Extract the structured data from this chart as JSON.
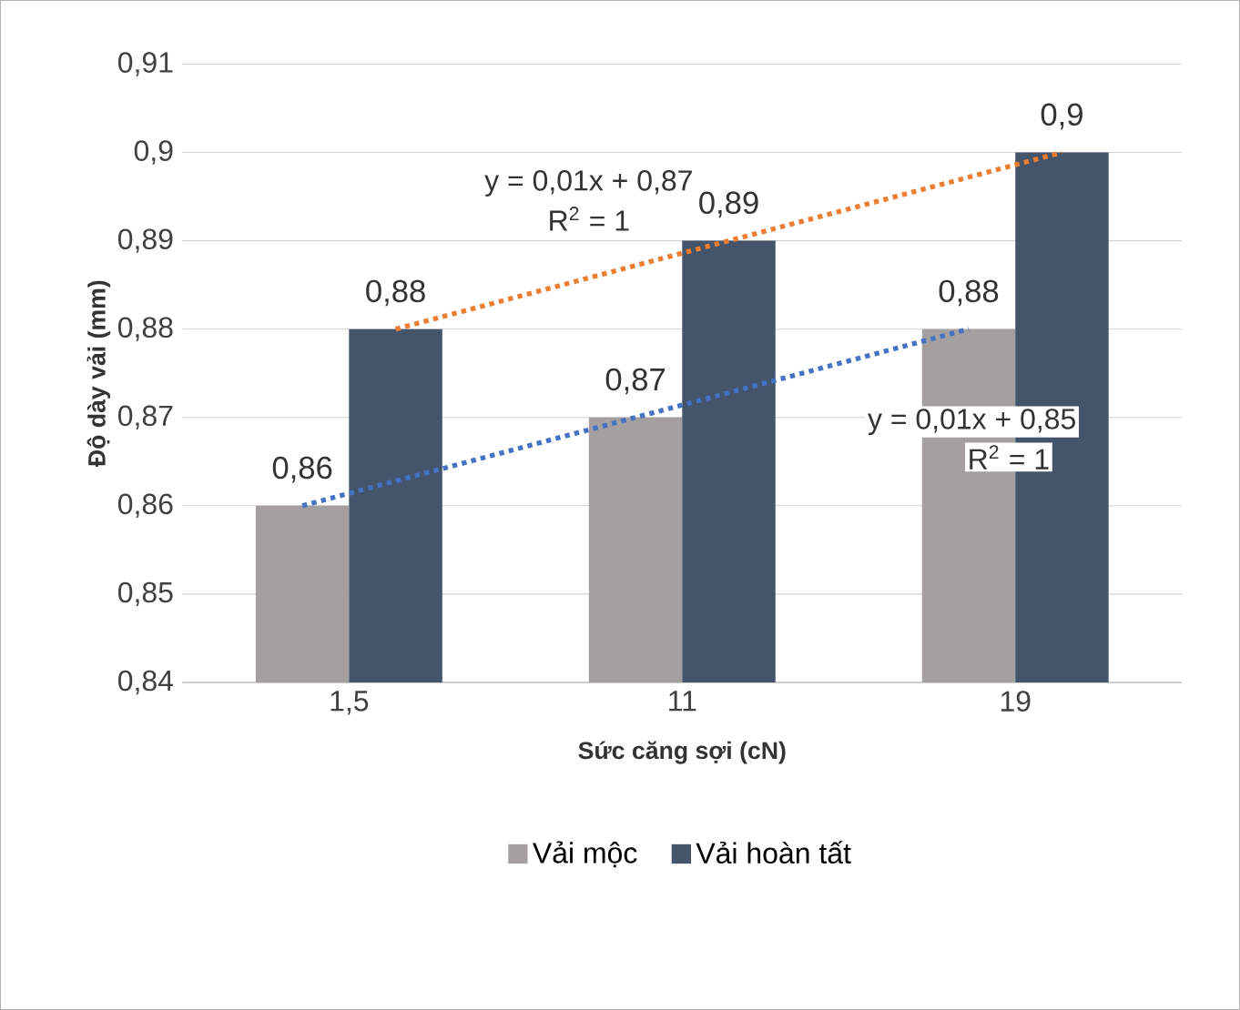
{
  "chart_data": {
    "type": "bar",
    "xlabel": "Sức căng sợi (cN)",
    "ylabel": "Độ dày vải (mm)",
    "categories": [
      "1,5",
      "11",
      "19"
    ],
    "series": [
      {
        "name": "Vải mộc",
        "color": "#a5a0a0",
        "values": [
          0.86,
          0.87,
          0.88
        ],
        "value_labels": [
          "0,86",
          "0,87",
          "0,88"
        ]
      },
      {
        "name": "Vải hoàn tất",
        "color": "#44546a",
        "values": [
          0.88,
          0.89,
          0.9
        ],
        "value_labels": [
          "0,88",
          "0,89",
          "0,9"
        ]
      },
      {
        "type": "line",
        "color": "#4472c4",
        "line_style": "dotted",
        "values": [
          0.86,
          0.87,
          0.88
        ]
      },
      {
        "type": "line",
        "color": "#ed7d31",
        "line_style": "dotted",
        "values": [
          0.88,
          0.89,
          0.9
        ]
      }
    ],
    "ylim": [
      0.84,
      0.91
    ],
    "yticks": [
      {
        "value": 0.84,
        "label": "0,84"
      },
      {
        "value": 0.85,
        "label": "0,85"
      },
      {
        "value": 0.86,
        "label": "0,86"
      },
      {
        "value": 0.87,
        "label": "0,87"
      },
      {
        "value": 0.88,
        "label": "0,88"
      },
      {
        "value": 0.89,
        "label": "0,89"
      },
      {
        "value": 0.9,
        "label": "0,9"
      },
      {
        "value": 0.91,
        "label": "0,91"
      }
    ],
    "grid": "y",
    "legend": "bottom",
    "annotations": [
      "y = 0,01x + 0,87",
      "R$^{2}$ = 1",
      "y = 0,01x + 0,85",
      "R$^{2}$ = 1"
    ]
  }
}
